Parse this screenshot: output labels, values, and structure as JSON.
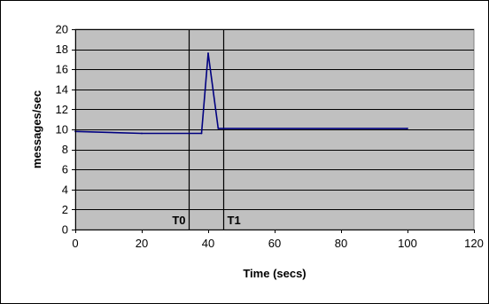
{
  "chart_data": {
    "type": "line",
    "title": "",
    "xlabel": "Time (secs)",
    "ylabel": "messages/sec",
    "xlim": [
      0,
      120
    ],
    "ylim": [
      0,
      20
    ],
    "x_ticks": [
      0,
      20,
      40,
      60,
      80,
      100,
      120
    ],
    "y_ticks": [
      0,
      2,
      4,
      6,
      8,
      10,
      12,
      14,
      16,
      18,
      20
    ],
    "grid": "horizontal",
    "legend": "none",
    "plot_background": "#c0c0c0",
    "series": [
      {
        "color": "#000080",
        "points": [
          {
            "x": 0,
            "y": 9.8
          },
          {
            "x": 20,
            "y": 9.6
          },
          {
            "x": 38,
            "y": 9.6
          },
          {
            "x": 40,
            "y": 17.6
          },
          {
            "x": 43,
            "y": 10.1
          },
          {
            "x": 100,
            "y": 10.1
          }
        ]
      }
    ],
    "markers": [
      {
        "label": "T0",
        "x": 34
      },
      {
        "label": "T1",
        "x": 44.5
      }
    ]
  }
}
